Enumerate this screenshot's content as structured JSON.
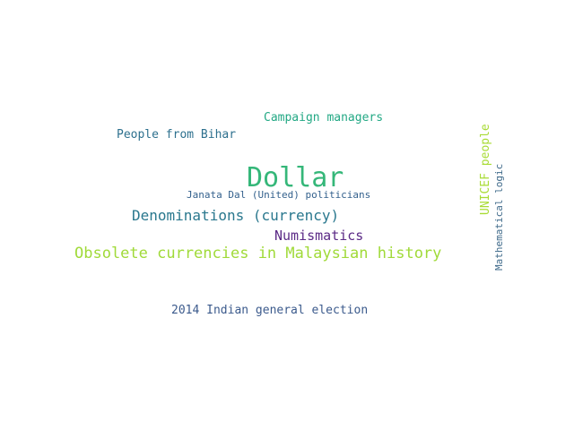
{
  "words": [
    {
      "text": "Dollar",
      "color": "#35b779"
    },
    {
      "text": "Obsolete currencies in Malaysian history",
      "color": "#a0da39"
    },
    {
      "text": "Denominations (currency)",
      "color": "#2a788e"
    },
    {
      "text": "Numismatics",
      "color": "#5b2a86"
    },
    {
      "text": "Campaign managers",
      "color": "#22a884"
    },
    {
      "text": "People from Bihar",
      "color": "#2d708e"
    },
    {
      "text": "2014 Indian general election",
      "color": "#3b5a8c"
    },
    {
      "text": "Janata Dal (United) politicians",
      "color": "#34618d"
    },
    {
      "text": "UNICEF people",
      "color": "#a8db34"
    },
    {
      "text": "Mathematical logic",
      "color": "#3f6a8a"
    }
  ]
}
